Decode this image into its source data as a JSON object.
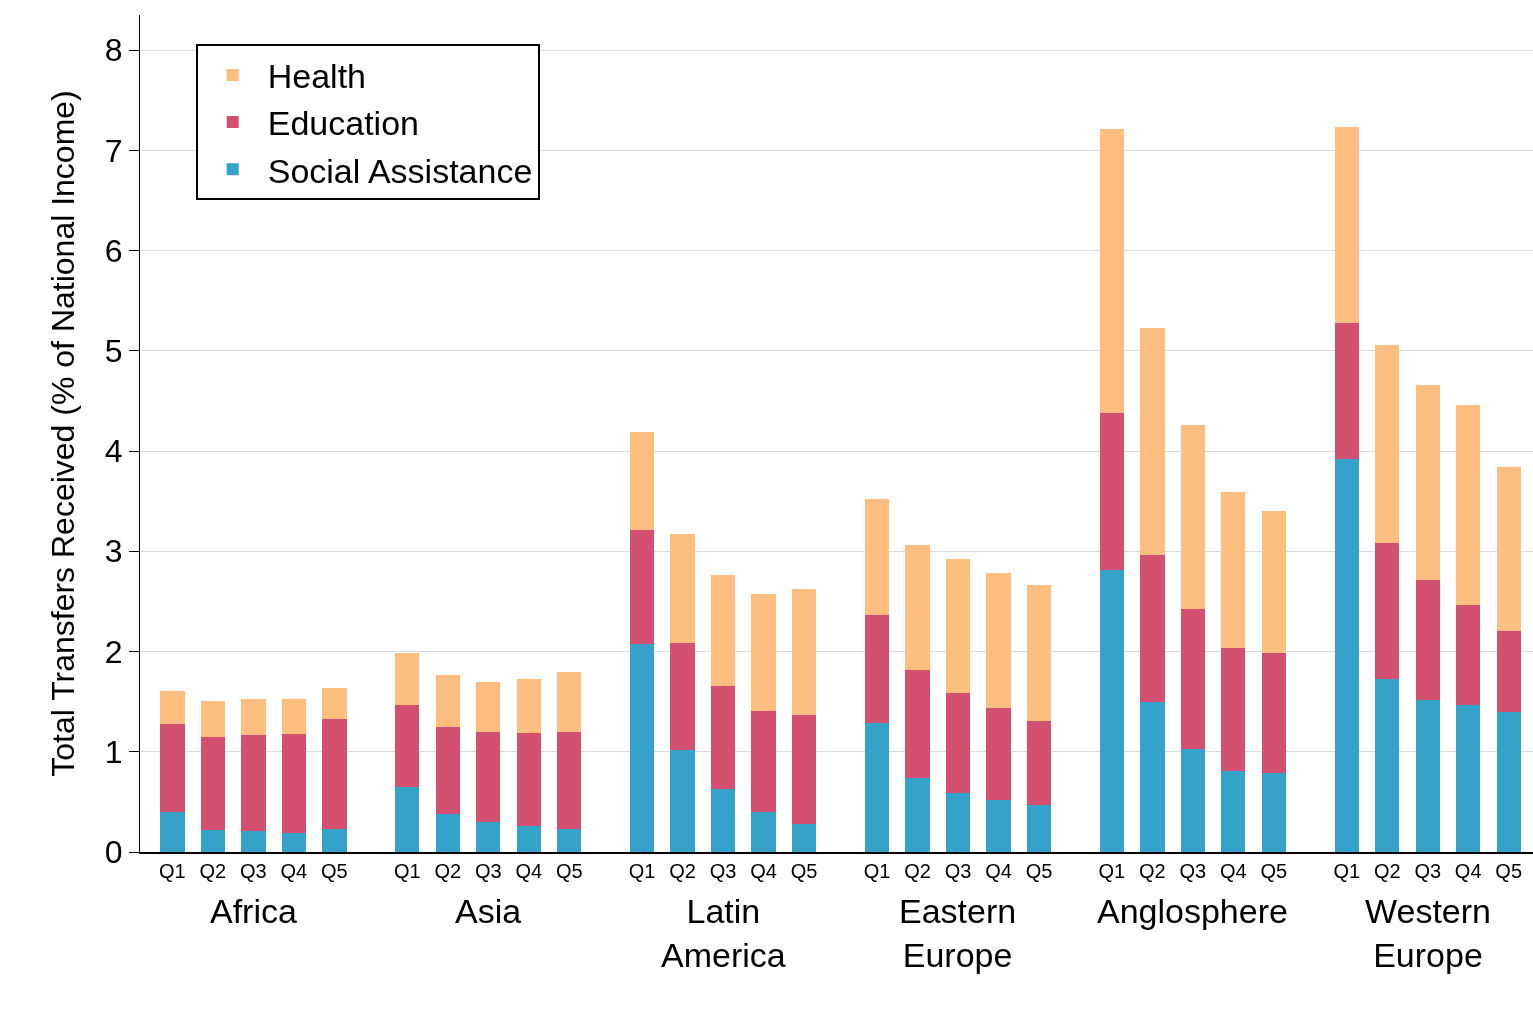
{
  "chart_data": {
    "type": "bar",
    "stacked": true,
    "ylabel": "Total Transfers Received (% of National Income)",
    "categories": [
      "Q1",
      "Q2",
      "Q3",
      "Q4",
      "Q5",
      "Q1",
      "Q2",
      "Q3",
      "Q4",
      "Q5",
      "Q1",
      "Q2",
      "Q3",
      "Q4",
      "Q5",
      "Q1",
      "Q2",
      "Q3",
      "Q4",
      "Q5",
      "Q1",
      "Q2",
      "Q3",
      "Q4",
      "Q5",
      "Q1",
      "Q2",
      "Q3",
      "Q4",
      "Q5"
    ],
    "annotations": [
      "Africa",
      "Asia",
      "Latin America",
      "Eastern Europe",
      "Anglosphere",
      "Western Europe"
    ],
    "series": [
      {
        "name": "Social Assistance",
        "color": "#34a2c9",
        "values": [
          0.4,
          0.22,
          0.21,
          0.19,
          0.23,
          0.65,
          0.38,
          0.3,
          0.26,
          0.23,
          2.08,
          1.02,
          0.63,
          0.4,
          0.28,
          1.29,
          0.74,
          0.59,
          0.52,
          0.47,
          2.81,
          1.5,
          1.03,
          0.81,
          0.79,
          3.92,
          1.73,
          1.52,
          1.47,
          1.4
        ]
      },
      {
        "name": "Education",
        "color": "#d35070",
        "values": [
          0.88,
          0.93,
          0.96,
          0.99,
          1.1,
          0.82,
          0.87,
          0.9,
          0.93,
          0.97,
          1.13,
          1.07,
          1.03,
          1.01,
          1.09,
          1.07,
          1.08,
          1.0,
          0.92,
          0.84,
          1.57,
          1.46,
          1.39,
          1.23,
          1.2,
          1.36,
          1.35,
          1.19,
          0.99,
          0.8
        ]
      },
      {
        "name": "Health",
        "color": "#febe80",
        "values": [
          0.33,
          0.36,
          0.36,
          0.35,
          0.31,
          0.52,
          0.52,
          0.5,
          0.54,
          0.6,
          0.98,
          1.08,
          1.1,
          1.16,
          1.25,
          1.16,
          1.24,
          1.33,
          1.34,
          1.35,
          2.83,
          2.27,
          1.84,
          1.55,
          1.41,
          1.95,
          1.98,
          1.95,
          2.0,
          1.64
        ]
      }
    ],
    "ylim": [
      0,
      8.35
    ],
    "yticks": [
      0,
      1,
      2,
      3,
      4,
      5,
      6,
      7,
      8
    ],
    "grid": "y",
    "legend": "top left"
  }
}
